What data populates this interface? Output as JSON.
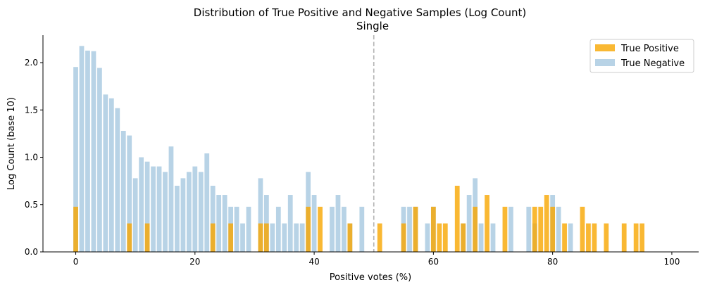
{
  "chart_data": {
    "type": "bar",
    "title": "Distribution of True Positive and Negative Samples (Log Count)",
    "subtitle": "Single",
    "xlabel": "Positive votes (%)",
    "ylabel": "Log Count (base 10)",
    "xlim": [
      -5.5,
      104.5
    ],
    "ylim": [
      0,
      2.29
    ],
    "xticks": [
      0,
      20,
      40,
      60,
      80,
      100
    ],
    "yticks": [
      0.0,
      0.5,
      1.0,
      1.5,
      2.0
    ],
    "xtick_labels": [
      "0",
      "20",
      "40",
      "60",
      "80",
      "100"
    ],
    "ytick_labels": [
      "0.0",
      "0.5",
      "1.0",
      "1.5",
      "2.0"
    ],
    "grid": false,
    "legend_position": "top-right",
    "reference_line": {
      "x": 50,
      "style": "dashed",
      "color": "#b3b3b3"
    },
    "series": [
      {
        "name": "True Positive",
        "color": "#f7a600",
        "opacity": 0.8,
        "points": [
          [
            0,
            0.477
          ],
          [
            9,
            0.301
          ],
          [
            12,
            0.301
          ],
          [
            23,
            0.301
          ],
          [
            26,
            0.301
          ],
          [
            31,
            0.301
          ],
          [
            32,
            0.301
          ],
          [
            39,
            0.477
          ],
          [
            41,
            0.477
          ],
          [
            46,
            0.301
          ],
          [
            51,
            0.301
          ],
          [
            55,
            0.301
          ],
          [
            57,
            0.477
          ],
          [
            60,
            0.477
          ],
          [
            61,
            0.301
          ],
          [
            62,
            0.301
          ],
          [
            64,
            0.699
          ],
          [
            65,
            0.301
          ],
          [
            67,
            0.477
          ],
          [
            69,
            0.602
          ],
          [
            72,
            0.477
          ],
          [
            77,
            0.477
          ],
          [
            78,
            0.477
          ],
          [
            79,
            0.602
          ],
          [
            80,
            0.477
          ],
          [
            82,
            0.301
          ],
          [
            85,
            0.477
          ],
          [
            86,
            0.301
          ],
          [
            87,
            0.301
          ],
          [
            89,
            0.301
          ],
          [
            92,
            0.301
          ],
          [
            94,
            0.301
          ],
          [
            95,
            0.301
          ]
        ]
      },
      {
        "name": "True Negative",
        "color": "#a6c8e0",
        "opacity": 0.8,
        "points": [
          [
            0,
            1.954
          ],
          [
            1,
            2.176
          ],
          [
            2,
            2.127
          ],
          [
            3,
            2.121
          ],
          [
            4,
            1.944
          ],
          [
            5,
            1.663
          ],
          [
            6,
            1.623
          ],
          [
            7,
            1.519
          ],
          [
            8,
            1.279
          ],
          [
            9,
            1.23
          ],
          [
            10,
            0.778
          ],
          [
            11,
            1.0
          ],
          [
            12,
            0.954
          ],
          [
            13,
            0.903
          ],
          [
            14,
            0.903
          ],
          [
            15,
            0.845
          ],
          [
            16,
            1.114
          ],
          [
            17,
            0.699
          ],
          [
            18,
            0.778
          ],
          [
            19,
            0.845
          ],
          [
            20,
            0.903
          ],
          [
            21,
            0.845
          ],
          [
            22,
            1.041
          ],
          [
            23,
            0.699
          ],
          [
            24,
            0.602
          ],
          [
            25,
            0.602
          ],
          [
            26,
            0.477
          ],
          [
            27,
            0.477
          ],
          [
            28,
            0.301
          ],
          [
            29,
            0.477
          ],
          [
            31,
            0.778
          ],
          [
            32,
            0.602
          ],
          [
            33,
            0.301
          ],
          [
            34,
            0.477
          ],
          [
            35,
            0.301
          ],
          [
            36,
            0.602
          ],
          [
            37,
            0.301
          ],
          [
            38,
            0.301
          ],
          [
            39,
            0.845
          ],
          [
            40,
            0.602
          ],
          [
            43,
            0.477
          ],
          [
            44,
            0.602
          ],
          [
            45,
            0.477
          ],
          [
            46,
            0.301
          ],
          [
            48,
            0.477
          ],
          [
            55,
            0.477
          ],
          [
            56,
            0.477
          ],
          [
            57,
            0.477
          ],
          [
            59,
            0.301
          ],
          [
            60,
            0.477
          ],
          [
            65,
            0.301
          ],
          [
            66,
            0.602
          ],
          [
            67,
            0.778
          ],
          [
            68,
            0.301
          ],
          [
            70,
            0.301
          ],
          [
            73,
            0.477
          ],
          [
            76,
            0.477
          ],
          [
            77,
            0.301
          ],
          [
            80,
            0.602
          ],
          [
            81,
            0.477
          ],
          [
            83,
            0.301
          ]
        ]
      }
    ]
  }
}
